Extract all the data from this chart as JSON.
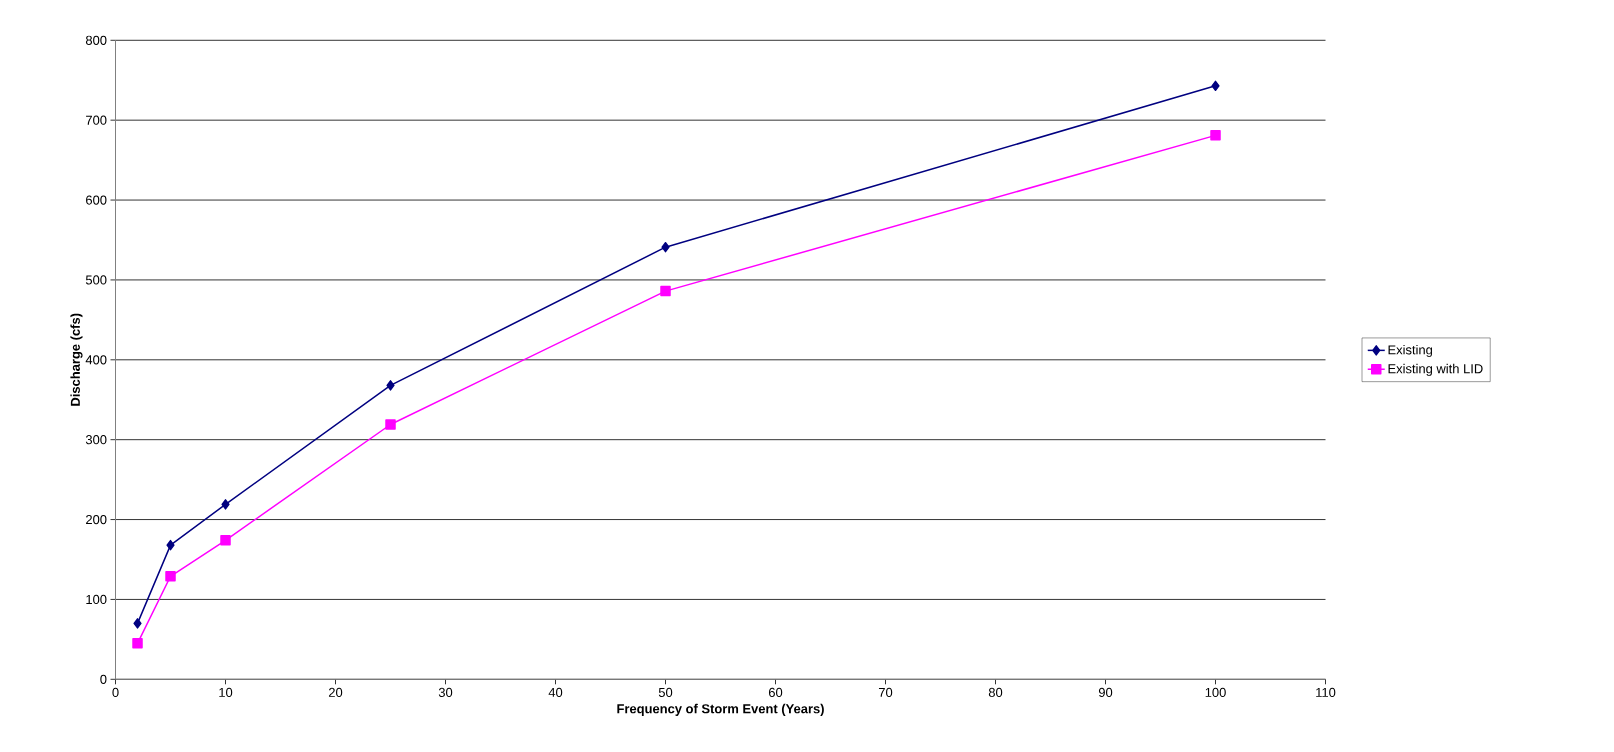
{
  "chart_data": {
    "type": "line",
    "xlabel": "Frequency of Storm Event (Years)",
    "ylabel": "Discharge (cfs)",
    "x": [
      2,
      5,
      10,
      25,
      50,
      100
    ],
    "series": [
      {
        "name": "Existing",
        "color": "#000080",
        "marker": "diamond",
        "values": [
          70,
          168,
          219,
          368,
          541,
          743
        ]
      },
      {
        "name": "Existing with LID",
        "color": "#ff00ff",
        "marker": "square",
        "values": [
          45,
          129,
          174,
          319,
          486,
          681
        ]
      }
    ],
    "xlim": [
      0,
      110
    ],
    "xticks": [
      0,
      10,
      20,
      30,
      40,
      50,
      60,
      70,
      80,
      90,
      100,
      110
    ],
    "ylim": [
      0,
      800
    ],
    "yticks": [
      0,
      100,
      200,
      300,
      400,
      500,
      600,
      700,
      800
    ],
    "grid": "y",
    "legend": "right",
    "line_style": "solid"
  }
}
